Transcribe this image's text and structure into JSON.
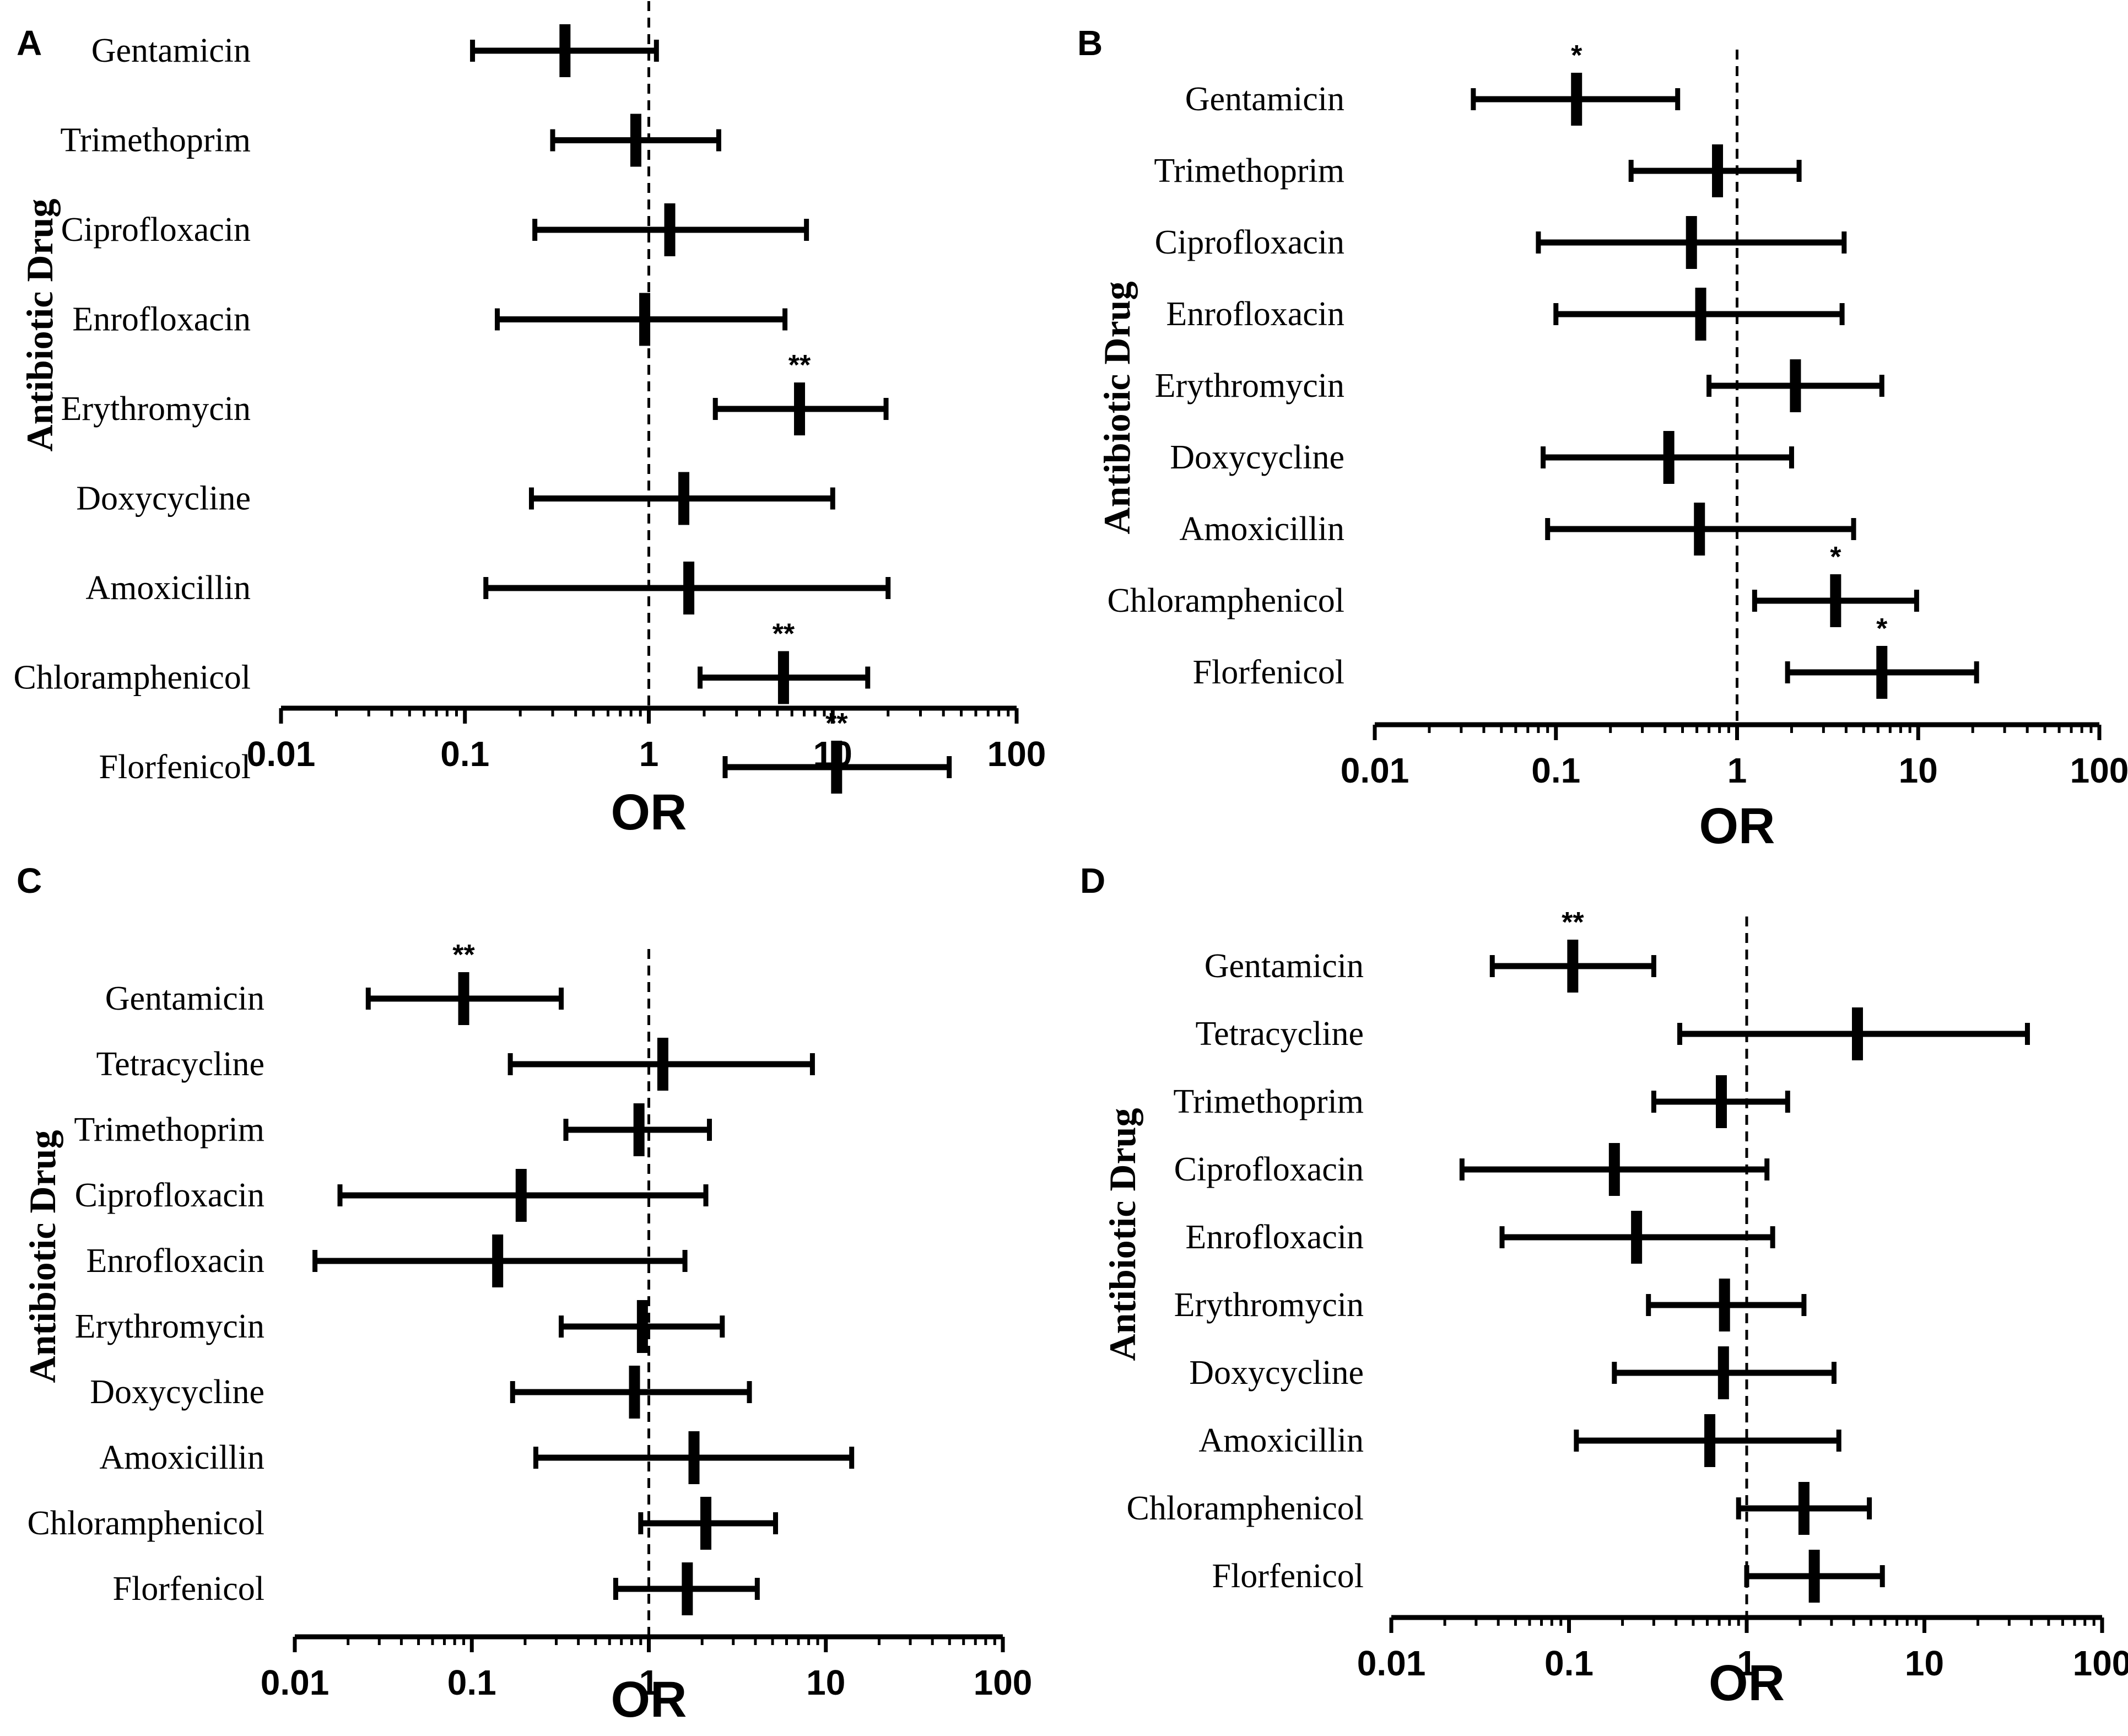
{
  "figure": {
    "ylabel": "Antibiotic Drug",
    "xlabel": "OR",
    "tick_labels": [
      "0.01",
      "0.1",
      "1",
      "10",
      "100"
    ]
  },
  "chart_data": [
    {
      "panel": "A",
      "type": "forest",
      "title": "",
      "xlabel": "OR",
      "ylabel": "Antibiotic Drug",
      "xscale": "log",
      "xlim": [
        0.01,
        100
      ],
      "reference_line": 1,
      "rows": [
        {
          "label": "Gentamicin",
          "or": 0.35,
          "low": 0.11,
          "high": 1.1,
          "sig": ""
        },
        {
          "label": "Trimethoprim",
          "or": 0.85,
          "low": 0.3,
          "high": 2.4,
          "sig": ""
        },
        {
          "label": "Ciprofloxacin",
          "or": 1.3,
          "low": 0.24,
          "high": 7.2,
          "sig": ""
        },
        {
          "label": "Enrofloxacin",
          "or": 0.95,
          "low": 0.15,
          "high": 5.5,
          "sig": ""
        },
        {
          "label": "Erythromycin",
          "or": 6.6,
          "low": 2.3,
          "high": 19.5,
          "sig": "**"
        },
        {
          "label": "Doxycycline",
          "or": 1.55,
          "low": 0.23,
          "high": 10.0,
          "sig": ""
        },
        {
          "label": "Amoxicillin",
          "or": 1.65,
          "low": 0.13,
          "high": 20.0,
          "sig": ""
        },
        {
          "label": "Chloramphenicol",
          "or": 5.4,
          "low": 1.9,
          "high": 15.5,
          "sig": "**"
        },
        {
          "label": "Florfenicol",
          "or": 10.5,
          "low": 2.6,
          "high": 43.0,
          "sig": "**"
        }
      ]
    },
    {
      "panel": "B",
      "type": "forest",
      "title": "",
      "xlabel": "OR",
      "ylabel": "Antibiotic Drug",
      "xscale": "log",
      "xlim": [
        0.01,
        100
      ],
      "reference_line": 1,
      "rows": [
        {
          "label": "Gentamicin",
          "or": 0.13,
          "low": 0.035,
          "high": 0.47,
          "sig": "*"
        },
        {
          "label": "Trimethoprim",
          "or": 0.78,
          "low": 0.26,
          "high": 2.2,
          "sig": ""
        },
        {
          "label": "Ciprofloxacin",
          "or": 0.56,
          "low": 0.08,
          "high": 3.9,
          "sig": ""
        },
        {
          "label": "Enrofloxacin",
          "or": 0.63,
          "low": 0.1,
          "high": 3.8,
          "sig": ""
        },
        {
          "label": "Erythromycin",
          "or": 2.1,
          "low": 0.7,
          "high": 6.3,
          "sig": ""
        },
        {
          "label": "Doxycycline",
          "or": 0.42,
          "low": 0.085,
          "high": 2.0,
          "sig": ""
        },
        {
          "label": "Amoxicillin",
          "or": 0.62,
          "low": 0.09,
          "high": 4.4,
          "sig": ""
        },
        {
          "label": "Chloramphenicol",
          "or": 3.5,
          "low": 1.25,
          "high": 9.8,
          "sig": "*"
        },
        {
          "label": "Florfenicol",
          "or": 6.3,
          "low": 1.9,
          "high": 21.0,
          "sig": "*"
        }
      ]
    },
    {
      "panel": "C",
      "type": "forest",
      "title": "",
      "xlabel": "OR",
      "ylabel": "Antibiotic Drug",
      "xscale": "log",
      "xlim": [
        0.01,
        100
      ],
      "reference_line": 1,
      "rows": [
        {
          "label": "Gentamicin",
          "or": 0.09,
          "low": 0.026,
          "high": 0.32,
          "sig": "**"
        },
        {
          "label": "Tetracycline",
          "or": 1.2,
          "low": 0.165,
          "high": 8.4,
          "sig": ""
        },
        {
          "label": "Trimethoprim",
          "or": 0.88,
          "low": 0.34,
          "high": 2.2,
          "sig": ""
        },
        {
          "label": "Ciprofloxacin",
          "or": 0.19,
          "low": 0.018,
          "high": 2.1,
          "sig": ""
        },
        {
          "label": "Enrofloxacin",
          "or": 0.14,
          "low": 0.013,
          "high": 1.6,
          "sig": ""
        },
        {
          "label": "Erythromycin",
          "or": 0.92,
          "low": 0.32,
          "high": 2.6,
          "sig": ""
        },
        {
          "label": "Doxycycline",
          "or": 0.83,
          "low": 0.17,
          "high": 3.7,
          "sig": ""
        },
        {
          "label": "Amoxicillin",
          "or": 1.8,
          "low": 0.23,
          "high": 14.0,
          "sig": ""
        },
        {
          "label": "Chloramphenicol",
          "or": 2.1,
          "low": 0.9,
          "high": 5.2,
          "sig": ""
        },
        {
          "label": "Florfenicol",
          "or": 1.65,
          "low": 0.65,
          "high": 4.1,
          "sig": ""
        }
      ]
    },
    {
      "panel": "D",
      "type": "forest",
      "title": "",
      "xlabel": "OR",
      "ylabel": "Antibiotic Drug",
      "xscale": "log",
      "xlim": [
        0.01,
        100
      ],
      "reference_line": 1,
      "rows": [
        {
          "label": "Gentamicin",
          "or": 0.105,
          "low": 0.037,
          "high": 0.3,
          "sig": "**"
        },
        {
          "label": "Tetracycline",
          "or": 4.2,
          "low": 0.42,
          "high": 38.0,
          "sig": ""
        },
        {
          "label": "Trimethoprim",
          "or": 0.72,
          "low": 0.3,
          "high": 1.7,
          "sig": ""
        },
        {
          "label": "Ciprofloxacin",
          "or": 0.18,
          "low": 0.025,
          "high": 1.3,
          "sig": ""
        },
        {
          "label": "Enrofloxacin",
          "or": 0.24,
          "low": 0.042,
          "high": 1.4,
          "sig": ""
        },
        {
          "label": "Erythromycin",
          "or": 0.75,
          "low": 0.28,
          "high": 2.1,
          "sig": ""
        },
        {
          "label": "Doxycycline",
          "or": 0.74,
          "low": 0.18,
          "high": 3.1,
          "sig": ""
        },
        {
          "label": "Amoxicillin",
          "or": 0.62,
          "low": 0.11,
          "high": 3.3,
          "sig": ""
        },
        {
          "label": "Chloramphenicol",
          "or": 2.1,
          "low": 0.9,
          "high": 4.9,
          "sig": ""
        },
        {
          "label": "Florfenicol",
          "or": 2.4,
          "low": 1.0,
          "high": 5.8,
          "sig": ""
        }
      ]
    }
  ]
}
